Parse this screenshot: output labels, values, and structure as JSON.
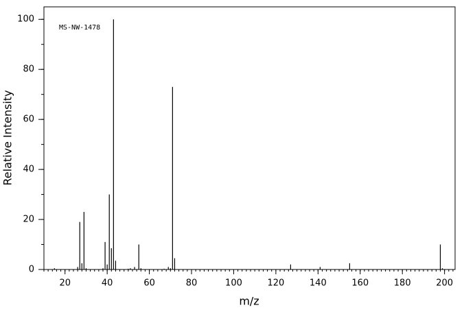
{
  "chart_data": {
    "type": "stem",
    "annotation": "MS-NW-1478",
    "x_label": "m/z",
    "y_label": "Relative Intensity",
    "x": [
      15,
      26,
      27,
      28,
      29,
      30,
      38,
      39,
      40,
      41,
      42,
      43,
      44,
      50,
      51,
      53,
      55,
      56,
      67,
      69,
      70,
      71,
      72,
      127,
      141,
      155,
      198,
      199
    ],
    "values": [
      0.5,
      1,
      19,
      2.5,
      23,
      0.5,
      0.5,
      11,
      2,
      30,
      8.5,
      100,
      3.5,
      0.3,
      0.5,
      1,
      10,
      0.5,
      0.3,
      1,
      0.5,
      73,
      4.5,
      2,
      1,
      2.5,
      10,
      0.5
    ],
    "color": "#000000",
    "xlim": [
      10,
      205
    ],
    "xticks": [
      20,
      40,
      60,
      80,
      100,
      120,
      140,
      160,
      180,
      200
    ],
    "x_minor_tick_step": 2,
    "ylim": [
      0,
      105
    ],
    "yticks": [
      0,
      20,
      40,
      60,
      80,
      100
    ],
    "y_minor_tick_step": 10,
    "grid": false
  }
}
